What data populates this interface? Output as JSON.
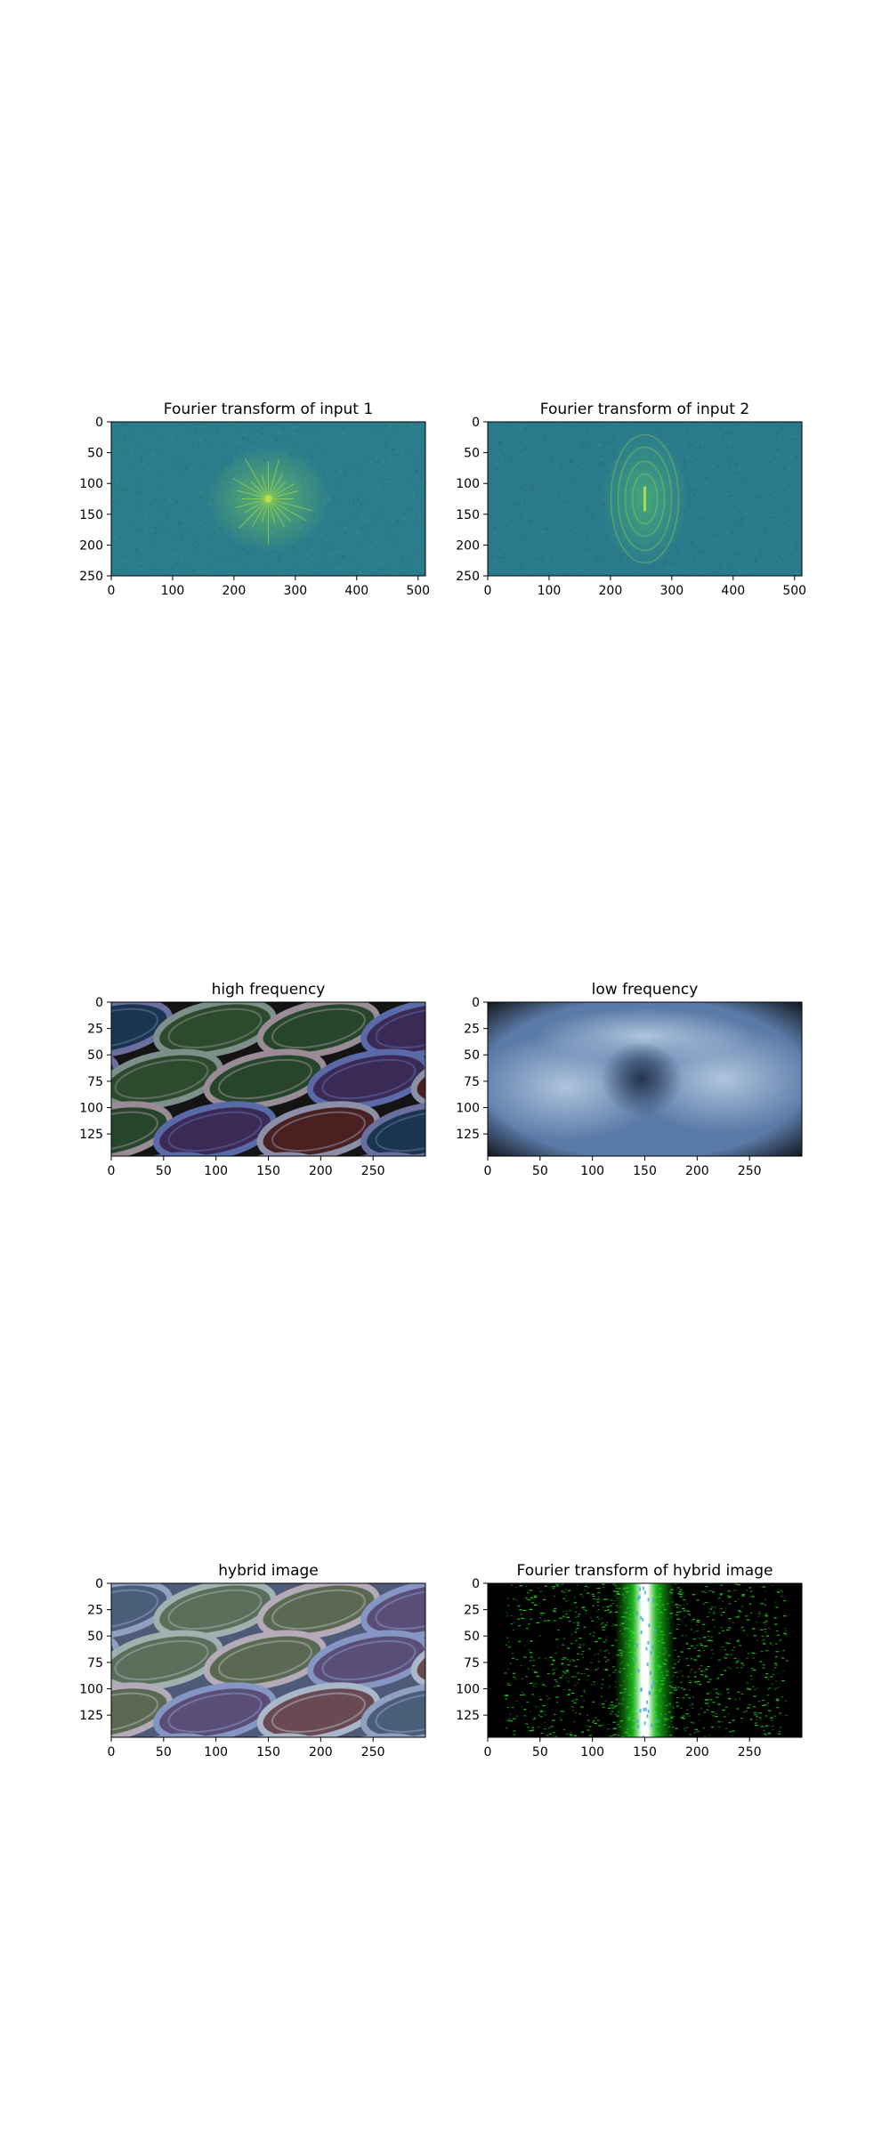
{
  "chart_data": [
    {
      "type": "heatmap",
      "title": "Fourier transform of input 1",
      "xlabel": "",
      "ylabel": "",
      "xlim": [
        0,
        512
      ],
      "ylim": [
        250,
        0
      ],
      "xticks": [
        0,
        100,
        200,
        300,
        400,
        500
      ],
      "yticks": [
        0,
        50,
        100,
        150,
        200,
        250
      ],
      "grid": false,
      "colormap": "viridis",
      "image": {
        "background": "#2c7d8c",
        "center": [
          256,
          125
        ],
        "glow_color": "#6fc55e",
        "core_color": "#b8de4a",
        "pattern": "star"
      }
    },
    {
      "type": "heatmap",
      "title": "Fourier transform of input 2",
      "xlabel": "",
      "ylabel": "",
      "xlim": [
        0,
        512
      ],
      "ylim": [
        250,
        0
      ],
      "xticks": [
        0,
        100,
        200,
        300,
        400,
        500
      ],
      "yticks": [
        0,
        50,
        100,
        150,
        200,
        250
      ],
      "grid": false,
      "colormap": "viridis",
      "image": {
        "background": "#2a7a8b",
        "center": [
          256,
          125
        ],
        "glow_color": "#4fb574",
        "core_color": "#a5db56",
        "pattern": "rings"
      }
    },
    {
      "type": "heatmap",
      "title": "high frequency",
      "xlabel": "",
      "ylabel": "",
      "xlim": [
        0,
        300
      ],
      "ylim": [
        146,
        0
      ],
      "xticks": [
        0,
        50,
        100,
        150,
        200,
        250
      ],
      "yticks": [
        0,
        25,
        50,
        75,
        100,
        125
      ],
      "grid": false,
      "image": {
        "background": "#141414",
        "pattern": "ellipses",
        "rim_colors": [
          "#8c8fa8",
          "#6b6fa0",
          "#7c8f8a",
          "#9a8c96",
          "#5a6aa8"
        ],
        "fill_colors": [
          "#26462c",
          "#3a2a55",
          "#4a2020",
          "#1a3550",
          "#2d4a2d"
        ]
      }
    },
    {
      "type": "heatmap",
      "title": "low frequency",
      "xlabel": "",
      "ylabel": "",
      "xlim": [
        0,
        300
      ],
      "ylim": [
        146,
        0
      ],
      "xticks": [
        0,
        50,
        100,
        150,
        200,
        250
      ],
      "yticks": [
        0,
        25,
        50,
        75,
        100,
        125
      ],
      "grid": false,
      "image": {
        "background": "#5a7aa8",
        "pattern": "blur",
        "light_color": "#b8cde3",
        "dark_color": "#1e2e4a",
        "edge_color": "#0a0a0a"
      }
    },
    {
      "type": "heatmap",
      "title": "hybrid image",
      "xlabel": "",
      "ylabel": "",
      "xlim": [
        0,
        300
      ],
      "ylim": [
        146,
        0
      ],
      "xticks": [
        0,
        50,
        100,
        150,
        200,
        250
      ],
      "yticks": [
        0,
        25,
        50,
        75,
        100,
        125
      ],
      "grid": false,
      "image": {
        "background": "#4e5a78",
        "pattern": "ellipses",
        "rim_colors": [
          "#a9b7c9",
          "#8fa0c0",
          "#9fb2b0",
          "#b4aab8",
          "#8596c4"
        ],
        "fill_colors": [
          "#5a6a52",
          "#5a4e78",
          "#6a4a52",
          "#4a5e7a",
          "#5a6e5a"
        ]
      }
    },
    {
      "type": "heatmap",
      "title": "Fourier transform of hybrid image",
      "xlabel": "",
      "ylabel": "",
      "xlim": [
        0,
        300
      ],
      "ylim": [
        146,
        0
      ],
      "xticks": [
        0,
        50,
        100,
        150,
        200,
        250
      ],
      "yticks": [
        0,
        25,
        50,
        75,
        100,
        125
      ],
      "grid": false,
      "image": {
        "background": "#000000",
        "pattern": "spectrum",
        "band_color": "#1fd81f",
        "core_color": "#ffffff",
        "accent_color": "#3aa8e0",
        "center_x": 150
      }
    }
  ]
}
